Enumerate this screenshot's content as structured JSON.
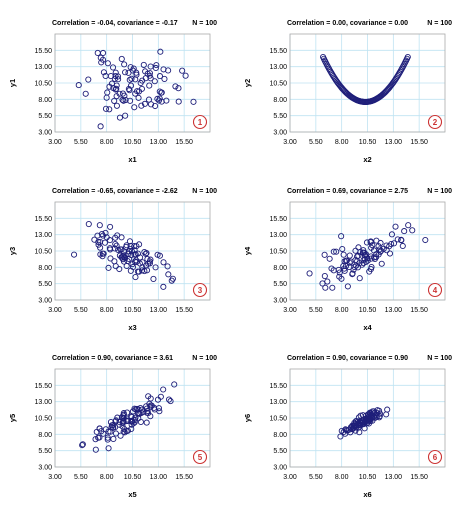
{
  "colors": {
    "grid": "#bfe3f2",
    "frame": "#aaaaaa",
    "point": "#1f1f7a",
    "badge": "#cc3333"
  },
  "chart_data": [
    {
      "type": "scatter",
      "correlation_label": "Correlation = -0.04, covariance = -0.17",
      "n_label": "N = 100",
      "xlabel": "x1",
      "ylabel": "y1",
      "xlim": [
        3.0,
        18.0
      ],
      "ylim": [
        3.0,
        18.0
      ],
      "x_ticks": [
        "3.00",
        "5.50",
        "8.00",
        "10.50",
        "13.00",
        "15.50"
      ],
      "y_ticks": [
        "3.00",
        "5.50",
        "8.00",
        "10.50",
        "13.00",
        "15.50"
      ],
      "grid": true,
      "badge": "1",
      "pattern": {
        "kind": "corr",
        "n": 100,
        "mx": 10.5,
        "sx": 2.2,
        "my": 10.0,
        "sy": 2.2,
        "r": -0.04,
        "seed": 11
      }
    },
    {
      "type": "scatter",
      "correlation_label": "Correlation = 0.00, covariance = 0.00",
      "n_label": "N = 100",
      "xlabel": "x2",
      "ylabel": "y2",
      "xlim": [
        3.0,
        18.0
      ],
      "ylim": [
        3.0,
        18.0
      ],
      "x_ticks": [
        "3.00",
        "5.50",
        "8.00",
        "10.50",
        "13.00",
        "15.50"
      ],
      "y_ticks": [
        "3.00",
        "5.50",
        "8.00",
        "10.50",
        "13.00",
        "15.50"
      ],
      "grid": true,
      "badge": "2",
      "pattern": {
        "kind": "parabola",
        "n": 100,
        "xmin": 6.2,
        "xmax": 14.4,
        "vx": 10.3,
        "vy": 7.6,
        "a": 0.409
      }
    },
    {
      "type": "scatter",
      "correlation_label": "Correlation = -0.65, covariance = -2.62",
      "n_label": "N = 100",
      "xlabel": "x3",
      "ylabel": "y3",
      "xlim": [
        3.0,
        18.0
      ],
      "ylim": [
        3.0,
        18.0
      ],
      "x_ticks": [
        "3.00",
        "5.50",
        "8.00",
        "10.50",
        "13.00",
        "15.50"
      ],
      "y_ticks": [
        "3.00",
        "5.50",
        "8.00",
        "10.50",
        "13.00",
        "15.50"
      ],
      "grid": true,
      "badge": "3",
      "pattern": {
        "kind": "corr",
        "n": 100,
        "mx": 10.0,
        "sx": 2.0,
        "my": 10.0,
        "sy": 2.0,
        "r": -0.65,
        "seed": 23
      }
    },
    {
      "type": "scatter",
      "correlation_label": "Correlation = 0.69, covariance = 2.75",
      "n_label": "N = 100",
      "xlabel": "x4",
      "ylabel": "y4",
      "xlim": [
        3.0,
        18.0
      ],
      "ylim": [
        3.0,
        18.0
      ],
      "x_ticks": [
        "3.00",
        "5.50",
        "8.00",
        "10.50",
        "13.00",
        "15.50"
      ],
      "y_ticks": [
        "3.00",
        "5.50",
        "8.00",
        "10.50",
        "13.00",
        "15.50"
      ],
      "grid": true,
      "badge": "4",
      "pattern": {
        "kind": "corr",
        "n": 100,
        "mx": 10.3,
        "sx": 2.0,
        "my": 9.9,
        "sy": 2.0,
        "r": 0.69,
        "seed": 37
      }
    },
    {
      "type": "scatter",
      "correlation_label": "Correlation = 0.90, covariance = 3.61",
      "n_label": "N = 100",
      "xlabel": "x5",
      "ylabel": "y5",
      "xlim": [
        3.0,
        18.0
      ],
      "ylim": [
        3.0,
        18.0
      ],
      "x_ticks": [
        "3.00",
        "5.50",
        "8.00",
        "10.50",
        "13.00",
        "15.50"
      ],
      "y_ticks": [
        "3.00",
        "5.50",
        "8.00",
        "10.50",
        "13.00",
        "15.50"
      ],
      "grid": true,
      "badge": "5",
      "pattern": {
        "kind": "corr",
        "n": 100,
        "mx": 10.0,
        "sx": 2.0,
        "my": 10.0,
        "sy": 2.0,
        "r": 0.9,
        "seed": 53
      }
    },
    {
      "type": "scatter",
      "correlation_label": "Correlation = 0.90, covariance = 0.90",
      "n_label": "N = 100",
      "xlabel": "x6",
      "ylabel": "y6",
      "xlim": [
        3.0,
        18.0
      ],
      "ylim": [
        3.0,
        18.0
      ],
      "x_ticks": [
        "3.00",
        "5.50",
        "8.00",
        "10.50",
        "13.00",
        "15.50"
      ],
      "y_ticks": [
        "3.00",
        "5.50",
        "8.00",
        "10.50",
        "13.00",
        "15.50"
      ],
      "grid": true,
      "badge": "6",
      "pattern": {
        "kind": "corr",
        "n": 100,
        "mx": 10.1,
        "sx": 1.0,
        "my": 10.0,
        "sy": 1.0,
        "r": 0.9,
        "seed": 71
      }
    }
  ]
}
